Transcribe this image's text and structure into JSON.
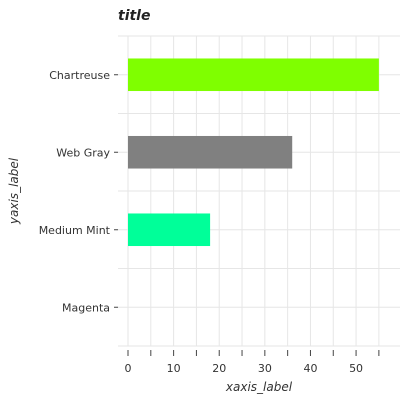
{
  "chart_data": {
    "type": "bar",
    "orientation": "horizontal",
    "title": "title",
    "xlabel": "xaxis_label",
    "ylabel": "yaxis_label",
    "categories": [
      "Magenta",
      "Medium Mint",
      "Web Gray",
      "Chartreuse"
    ],
    "values": [
      0,
      18,
      36,
      55
    ],
    "colors": [
      "#ff00ff",
      "#00ff99",
      "#808080",
      "#7fff00"
    ],
    "xlim": [
      0,
      57
    ],
    "xticks": [
      0,
      10,
      20,
      30,
      40,
      50
    ],
    "grid": true,
    "legend": false
  }
}
